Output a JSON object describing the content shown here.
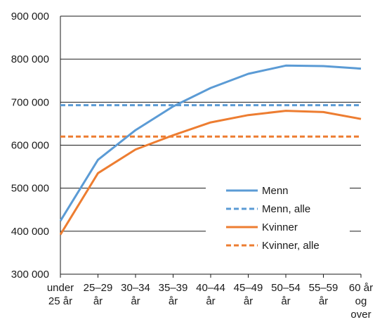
{
  "chart_data": {
    "type": "line",
    "categories": [
      [
        "under",
        "25 år"
      ],
      [
        "25–29",
        "år"
      ],
      [
        "30–34",
        "år"
      ],
      [
        "35–39",
        "år"
      ],
      [
        "40–44",
        "år"
      ],
      [
        "45–49",
        "år"
      ],
      [
        "50–54",
        "år"
      ],
      [
        "55–59",
        "år"
      ],
      [
        "60 år",
        "og",
        "over"
      ]
    ],
    "ylim": [
      300000,
      900000
    ],
    "yticks": [
      300000,
      400000,
      500000,
      600000,
      700000,
      800000,
      900000
    ],
    "ytick_labels": [
      "300 000",
      "400 000",
      "500 000",
      "600 000",
      "700 000",
      "800 000",
      "900 000"
    ],
    "grid": "horizontal",
    "legend_position": "lower-right",
    "series": [
      {
        "name": "Menn",
        "style": "solid",
        "color": "#5b9bd5",
        "values": [
          424000,
          566000,
          635000,
          690000,
          733000,
          766000,
          785000,
          784000,
          778000
        ]
      },
      {
        "name": "Menn, alle",
        "style": "dashed",
        "color": "#5b9bd5",
        "values": [
          693000,
          693000,
          693000,
          693000,
          693000,
          693000,
          693000,
          693000,
          693000
        ]
      },
      {
        "name": "Kvinner",
        "style": "solid",
        "color": "#ed7d31",
        "values": [
          392000,
          535000,
          590000,
          623000,
          653000,
          670000,
          680000,
          677000,
          661000
        ]
      },
      {
        "name": "Kvinner, alle",
        "style": "dashed",
        "color": "#ed7d31",
        "values": [
          620000,
          620000,
          620000,
          620000,
          620000,
          620000,
          620000,
          620000,
          620000
        ]
      }
    ]
  }
}
